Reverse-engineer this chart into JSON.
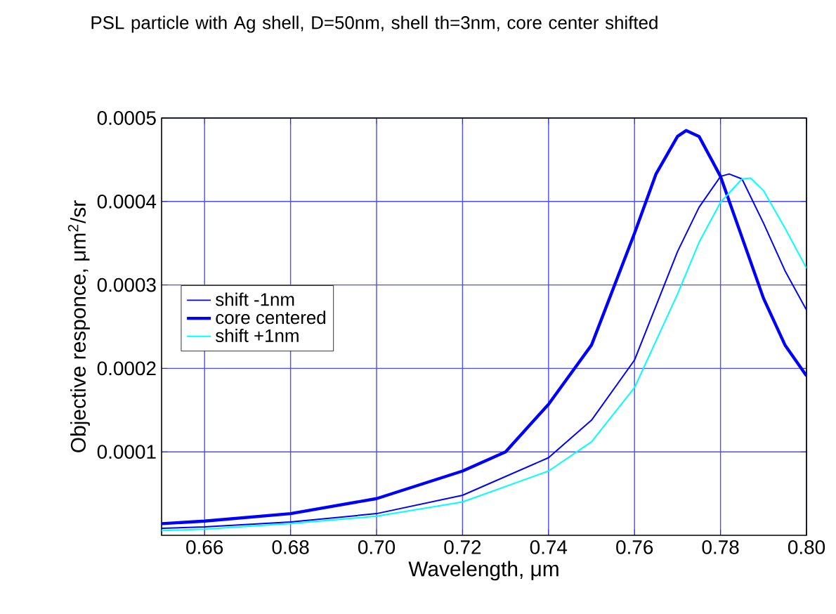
{
  "chart_data": {
    "type": "line",
    "title": "PSL particle with Ag shell, D=50nm, shell th=3nm, core center shifted",
    "xlabel": "Wavelength, μm",
    "ylabel": "Objective responce, μm$^{2}$/sr",
    "xlim": [
      0.65,
      0.8
    ],
    "ylim": [
      0,
      0.0005
    ],
    "xticks": [
      {
        "value": 0.66,
        "label": "0.66"
      },
      {
        "value": 0.68,
        "label": "0.68"
      },
      {
        "value": 0.7,
        "label": "0.70"
      },
      {
        "value": 0.72,
        "label": "0.72"
      },
      {
        "value": 0.74,
        "label": "0.74"
      },
      {
        "value": 0.76,
        "label": "0.76"
      },
      {
        "value": 0.78,
        "label": "0.78"
      },
      {
        "value": 0.8,
        "label": "0.80"
      }
    ],
    "yticks": [
      {
        "value": 0.0001,
        "label": "0.0001"
      },
      {
        "value": 0.0002,
        "label": "0.0002"
      },
      {
        "value": 0.0003,
        "label": "0.0003"
      },
      {
        "value": 0.0004,
        "label": "0.0004"
      },
      {
        "value": 0.0005,
        "label": "0.0005"
      }
    ],
    "grid": true,
    "legend": "left",
    "marker": "none",
    "line_style": "solid",
    "series": [
      {
        "name": "shift -1nm",
        "color": "#0000ff",
        "x": [
          0.65,
          0.66,
          0.68,
          0.7,
          0.72,
          0.74,
          0.75,
          0.76,
          0.77,
          0.775,
          0.78,
          0.782,
          0.785,
          0.79,
          0.795,
          0.8
        ],
        "values": [
          8.4e-06,
          1e-05,
          1.6e-05,
          2.6e-05,
          4.8e-05,
          9.3e-05,
          0.000138,
          0.00021,
          0.00034,
          0.000393,
          0.00043,
          0.000433,
          0.000427,
          0.000374,
          0.000317,
          0.00027
        ]
      },
      {
        "name": "core centered",
        "color": "#0000ff",
        "x": [
          0.65,
          0.66,
          0.68,
          0.7,
          0.72,
          0.73,
          0.74,
          0.75,
          0.76,
          0.765,
          0.77,
          0.772,
          0.775,
          0.78,
          0.785,
          0.79,
          0.795,
          0.8
        ],
        "values": [
          1.4e-05,
          1.7e-05,
          2.6e-05,
          4.4e-05,
          7.7e-05,
          0.0001,
          0.000157,
          0.000228,
          0.000362,
          0.000433,
          0.000478,
          0.000485,
          0.000478,
          0.00043,
          0.000357,
          0.000284,
          0.000228,
          0.000191
        ]
      },
      {
        "name": "shift +1nm",
        "color": "#00ffff",
        "x": [
          0.65,
          0.66,
          0.68,
          0.7,
          0.72,
          0.74,
          0.75,
          0.76,
          0.77,
          0.775,
          0.78,
          0.785,
          0.787,
          0.79,
          0.795,
          0.8
        ],
        "values": [
          5.6e-06,
          7.3e-06,
          1.4e-05,
          2.3e-05,
          4e-05,
          7.7e-05,
          0.000112,
          0.000177,
          0.000289,
          0.000351,
          0.000399,
          0.000427,
          0.000428,
          0.000413,
          0.000368,
          0.00032
        ]
      }
    ]
  }
}
